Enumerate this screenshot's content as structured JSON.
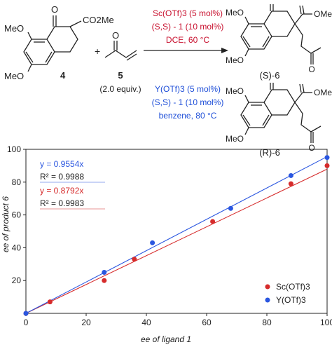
{
  "scheme": {
    "ketoester_substituents": [
      "MeO",
      "MeO"
    ],
    "ketoester_ester": "CO2Me",
    "compound4_label": "4",
    "plus": "+",
    "compound5_label": "5",
    "compound5_equiv": "(2.0 equiv.)",
    "sc_conditions": {
      "catalyst": "Sc(OTf)3 (5 mol%)",
      "ligand": "(S,S) - 1 (10 mol%)",
      "solvent_temp": "DCE, 60 °C"
    },
    "y_conditions": {
      "catalyst": "Y(OTf)3 (5 mol%)",
      "ligand": "(S,S) - 1 (10 mol%)",
      "solvent_temp": "benzene, 80 °C"
    },
    "product_S_label": "(S)-6",
    "product_R_label": "(R)-6",
    "product_substituents": [
      "MeO",
      "MeO"
    ],
    "product_ester": "OMe",
    "colors": {
      "sc": "#c8102e",
      "y": "#1f4fd8"
    }
  },
  "chart_data": {
    "type": "scatter",
    "xlabel": "ee of ligand 1",
    "ylabel": "ee of product 6",
    "xlim": [
      0,
      100
    ],
    "ylim": [
      0,
      100
    ],
    "xticks": [
      0,
      20,
      40,
      60,
      80,
      100
    ],
    "yticks": [
      20,
      40,
      60,
      80,
      100
    ],
    "grid": false,
    "legend_position": "bottom-right",
    "series": [
      {
        "name": "Sc(OTf)3",
        "color": "#d62b2b",
        "points": [
          [
            0,
            0
          ],
          [
            8,
            7
          ],
          [
            26,
            20
          ],
          [
            36,
            33
          ],
          [
            62,
            56
          ],
          [
            88,
            79
          ],
          [
            100,
            90
          ]
        ],
        "fit": {
          "slope": 0.8792,
          "equation": "y = 0.8792x",
          "r2": "R² = 0.9983"
        }
      },
      {
        "name": "Y(OTf)3",
        "color": "#2a56e0",
        "points": [
          [
            0,
            0
          ],
          [
            26,
            25
          ],
          [
            42,
            43
          ],
          [
            68,
            64
          ],
          [
            88,
            84
          ],
          [
            100,
            95
          ]
        ],
        "fit": {
          "slope": 0.9554,
          "equation": "y = 0.9554x",
          "r2": "R² = 0.9988"
        }
      }
    ]
  }
}
